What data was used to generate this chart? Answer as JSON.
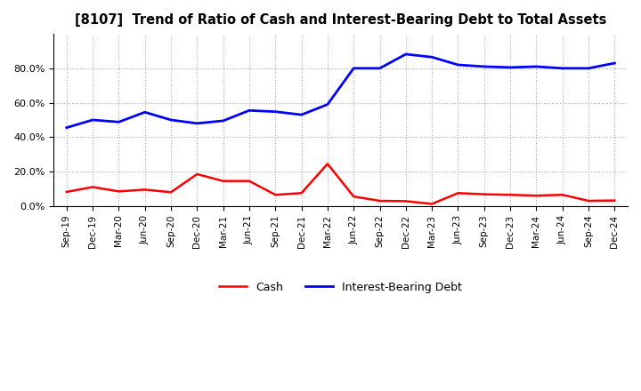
{
  "title": "[8107]  Trend of Ratio of Cash and Interest-Bearing Debt to Total Assets",
  "x_labels": [
    "Sep-19",
    "Dec-19",
    "Mar-20",
    "Jun-20",
    "Sep-20",
    "Dec-20",
    "Mar-21",
    "Jun-21",
    "Sep-21",
    "Dec-21",
    "Mar-22",
    "Jun-22",
    "Sep-22",
    "Dec-22",
    "Mar-23",
    "Jun-23",
    "Sep-23",
    "Dec-23",
    "Mar-24",
    "Jun-24",
    "Sep-24",
    "Dec-24"
  ],
  "cash": [
    0.082,
    0.11,
    0.085,
    0.095,
    0.08,
    0.185,
    0.145,
    0.145,
    0.065,
    0.075,
    0.245,
    0.055,
    0.03,
    0.028,
    0.012,
    0.075,
    0.068,
    0.065,
    0.06,
    0.065,
    0.03,
    0.032
  ],
  "interest_bearing_debt": [
    0.455,
    0.5,
    0.488,
    0.545,
    0.5,
    0.48,
    0.495,
    0.555,
    0.548,
    0.53,
    0.59,
    0.8,
    0.8,
    0.882,
    0.865,
    0.82,
    0.81,
    0.805,
    0.81,
    0.8,
    0.8,
    0.83
  ],
  "ylim": [
    0.0,
    1.0
  ],
  "yticks": [
    0.0,
    0.2,
    0.4,
    0.6,
    0.8
  ],
  "cash_color": "#FF0000",
  "debt_color": "#0000FF",
  "background_color": "#FFFFFF",
  "grid_color": "#AAAAAA",
  "legend_cash": "Cash",
  "legend_debt": "Interest-Bearing Debt"
}
